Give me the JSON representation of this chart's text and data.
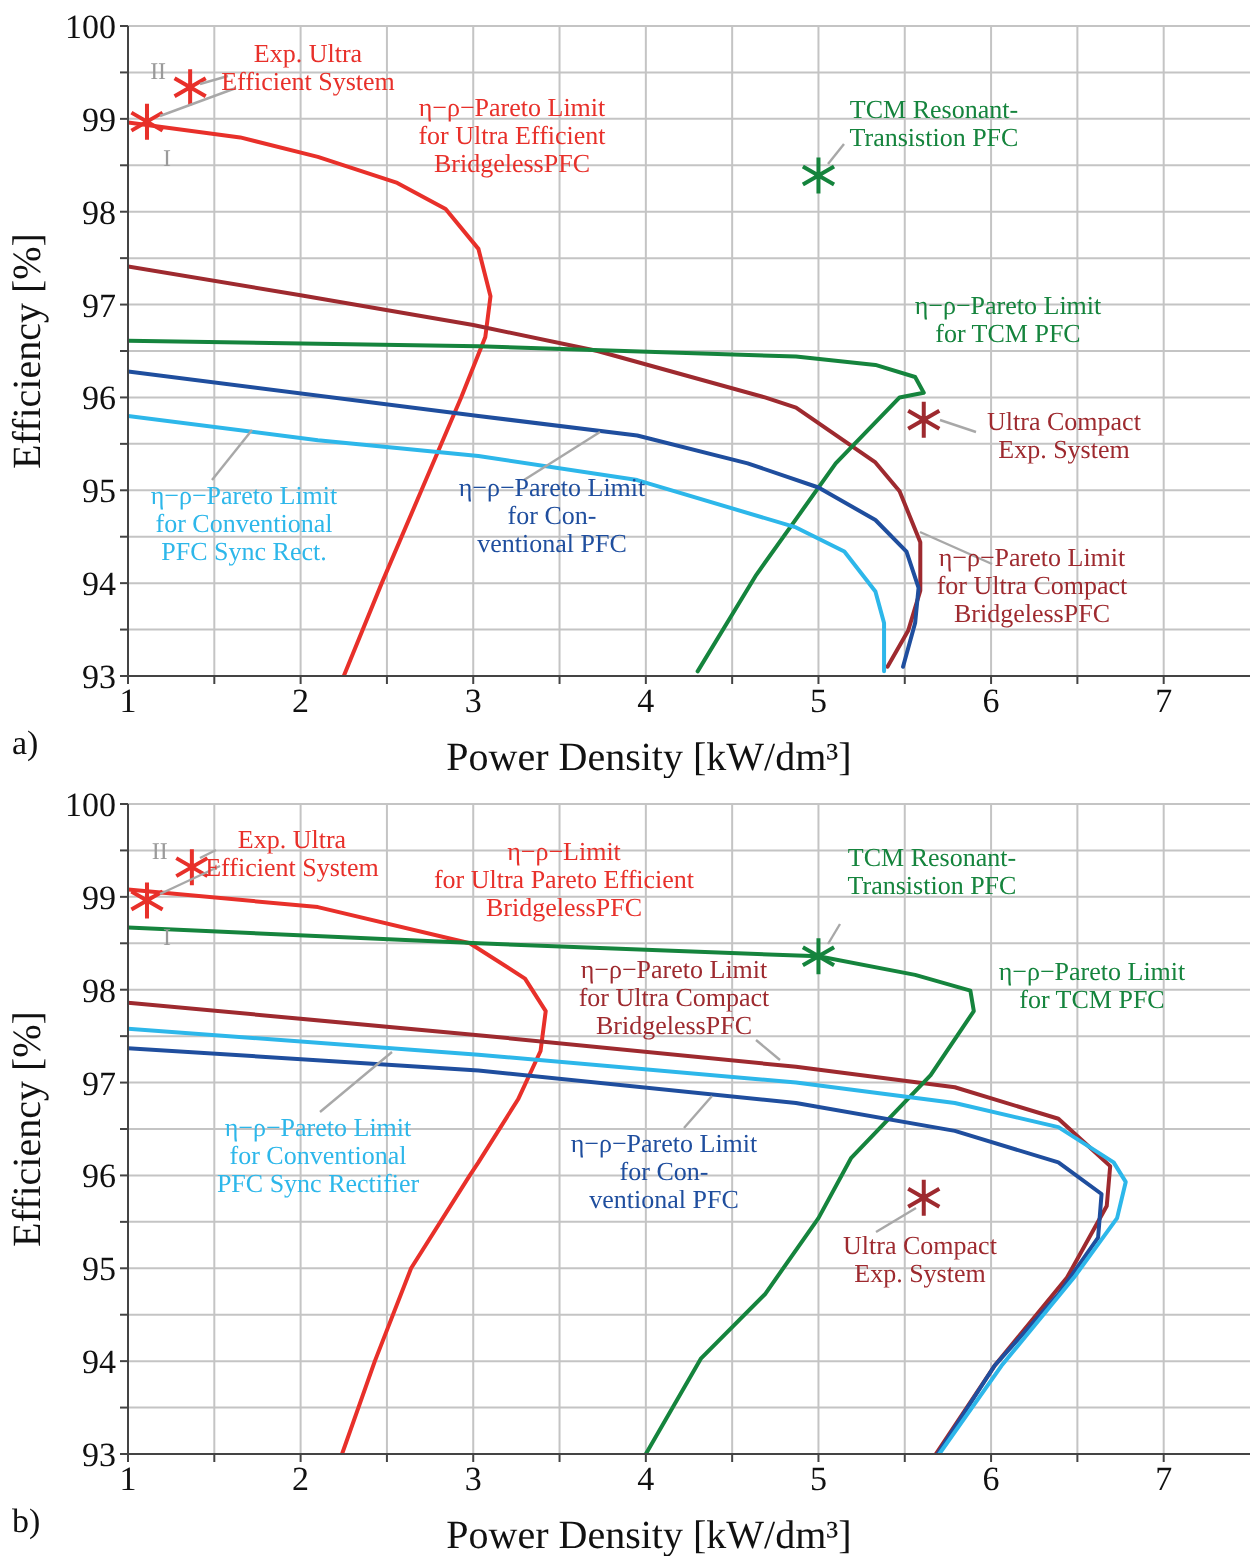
{
  "chart_data": [
    {
      "type": "line",
      "xlabel": "Power Density [kW/dm³]",
      "ylabel": "Efficiency [%]",
      "xlim": [
        1,
        7.5
      ],
      "ylim": [
        93,
        100
      ],
      "xticks": [
        1,
        {
          "value": 1.5,
          "label": null
        },
        2,
        {
          "value": 2.5,
          "label": null
        },
        3,
        {
          "value": 3.5,
          "label": null
        },
        4,
        {
          "value": 4.5,
          "label": null
        },
        5,
        {
          "value": 5.5,
          "label": null
        },
        6,
        {
          "value": 6.5,
          "label": null
        },
        7
      ],
      "yticks": [
        93,
        {
          "value": 93.5,
          "label": null
        },
        94,
        {
          "value": 94.5,
          "label": null
        },
        95,
        {
          "value": 95.5,
          "label": null
        },
        96,
        {
          "value": 96.5,
          "label": null
        },
        97,
        {
          "value": 97.5,
          "label": null
        },
        98,
        {
          "value": 98.5,
          "label": null
        },
        99,
        {
          "value": 99.5,
          "label": null
        },
        100
      ],
      "grid": true,
      "marker": "none",
      "line_style": "solid",
      "annotations": [
        "a)",
        {
          "text": "I",
          "x": 1.11,
          "y": 98.97
        },
        {
          "text": "II",
          "x": 1.36,
          "y": 99.34
        }
      ],
      "series": [
        {
          "name": "η−ρ−Pareto Limit\nfor Ultra Efficient\nBridgelessPFC",
          "color": "#e8302a",
          "x": [
            1,
            1.65,
            2.1,
            2.56,
            2.84,
            3.03,
            3.1,
            3.07,
            2.93,
            2.7,
            2.47,
            2.25
          ],
          "values": [
            98.96,
            98.8,
            98.59,
            98.31,
            98.03,
            97.6,
            97.09,
            96.65,
            96,
            95,
            94,
            93
          ]
        },
        {
          "name": "η−ρ−Pareto Limit\nfor Ultra Compact\nBridgelessPFC",
          "color": "#9e2a2f",
          "x": [
            1,
            2,
            3,
            3.72,
            4.69,
            4.87,
            5.33,
            5.47,
            5.59,
            5.59,
            5.52,
            5.4
          ],
          "values": [
            97.41,
            97.1,
            96.78,
            96.5,
            96,
            95.89,
            95.3,
            94.99,
            94.44,
            93.92,
            93.49,
            93.1
          ]
        },
        {
          "name": "η−ρ−Pareto Limit\nfor TCM PFC",
          "color": "#15843d",
          "x": [
            1,
            3.03,
            4.87,
            5.33,
            5.56,
            5.61,
            5.47,
            5.1,
            4.87,
            4.64,
            4.3
          ],
          "values": [
            96.61,
            96.55,
            96.44,
            96.35,
            96.22,
            96.05,
            96,
            95.29,
            94.69,
            94.09,
            93.05
          ]
        },
        {
          "name": "η−ρ−Pareto Limit\nfor Con-\nventional PFC",
          "color": "#1f4e9e",
          "x": [
            1,
            3.03,
            3.95,
            4.59,
            5,
            5.33,
            5.51,
            5.58,
            5.56,
            5.49
          ],
          "values": [
            96.28,
            95.8,
            95.59,
            95.29,
            95.03,
            94.68,
            94.34,
            93.95,
            93.57,
            93.1
          ]
        },
        {
          "name": "η−ρ−Pareto Limit\nfor Conventional\nPFC Sync Rect.",
          "color": "#2db7ea",
          "x": [
            1,
            2.1,
            3.03,
            3.95,
            4.87,
            5.15,
            5.33,
            5.38,
            5.38
          ],
          "values": [
            95.8,
            95.54,
            95.37,
            95.11,
            94.6,
            94.34,
            93.91,
            93.57,
            93.05
          ]
        },
        {
          "type": "scatter",
          "marker": "cross",
          "name": "Exp. Ultra\nEfficient System",
          "color": "#e8302a",
          "x": [
            1.11,
            1.36
          ],
          "values": [
            98.97,
            99.34
          ]
        },
        {
          "type": "scatter",
          "marker": "cross",
          "name": "TCM Resonant-\nTransistion PFC",
          "color": "#15843d",
          "x": [
            5
          ],
          "values": [
            98.39
          ]
        },
        {
          "type": "scatter",
          "marker": "cross",
          "name": "Ultra Compact\nExp. System",
          "color": "#9e2a2f",
          "x": [
            5.61
          ],
          "values": [
            95.76
          ]
        }
      ]
    },
    {
      "type": "line",
      "xlabel": "Power Density [kW/dm³]",
      "ylabel": "Efficiency [%]",
      "xlim": [
        1,
        7.5
      ],
      "ylim": [
        93,
        100
      ],
      "xticks": [
        1,
        {
          "value": 1.5,
          "label": null
        },
        2,
        {
          "value": 2.5,
          "label": null
        },
        3,
        {
          "value": 3.5,
          "label": null
        },
        4,
        {
          "value": 4.5,
          "label": null
        },
        5,
        {
          "value": 5.5,
          "label": null
        },
        6,
        {
          "value": 6.5,
          "label": null
        },
        7
      ],
      "yticks": [
        93,
        {
          "value": 93.5,
          "label": null
        },
        94,
        {
          "value": 94.5,
          "label": null
        },
        95,
        {
          "value": 95.5,
          "label": null
        },
        96,
        {
          "value": 96.5,
          "label": null
        },
        97,
        {
          "value": 97.5,
          "label": null
        },
        98,
        {
          "value": 98.5,
          "label": null
        },
        99,
        {
          "value": 99.5,
          "label": null
        },
        100
      ],
      "grid": true,
      "marker": "none",
      "line_style": "solid",
      "annotations": [
        "b)",
        {
          "text": "I",
          "x": 1.11,
          "y": 98.96
        },
        {
          "text": "II",
          "x": 1.37,
          "y": 99.32
        }
      ],
      "series": [
        {
          "name": "η−ρ−Limit\nfor Ultra Pareto Efficient\nBridgelessPFC",
          "color": "#e8302a",
          "x": [
            1,
            2.1,
            2.98,
            3.3,
            3.42,
            3.39,
            3.26,
            3.03,
            2.98,
            2.64,
            2.43,
            2.24
          ],
          "values": [
            99.08,
            98.89,
            98.5,
            98.12,
            97.77,
            97.34,
            96.82,
            96.14,
            96,
            95,
            94,
            93
          ]
        },
        {
          "name": "η−ρ−Pareto Limit\nfor Ultra Compact\nBridgelessPFC",
          "color": "#9e2a2f",
          "x": [
            1,
            3.03,
            4.87,
            5.79,
            6.39,
            6.62,
            6.69,
            6.67,
            6.44,
            6.02,
            5.68
          ],
          "values": [
            97.86,
            97.51,
            97.17,
            96.95,
            96.61,
            96.22,
            96.1,
            95.67,
            94.9,
            93.95,
            93
          ]
        },
        {
          "name": "η−ρ−Pareto Limit\nfor TCM PFC",
          "color": "#15843d",
          "x": [
            1,
            3.03,
            5,
            5.56,
            5.88,
            5.9,
            5.65,
            5.19,
            5,
            4.69,
            4.32,
            4
          ],
          "values": [
            98.67,
            98.5,
            98.36,
            98.16,
            97.99,
            97.77,
            97.08,
            96.19,
            95.54,
            94.72,
            94.03,
            93
          ]
        },
        {
          "name": "η−ρ−Pareto Limit\nfor Con-\nventional PFC",
          "color": "#1f4e9e",
          "x": [
            1,
            3.03,
            4.87,
            5.79,
            6.39,
            6.64,
            6.62,
            6.39,
            6.02,
            5.69
          ],
          "values": [
            97.37,
            97.13,
            96.78,
            96.48,
            96.14,
            95.8,
            95.33,
            94.72,
            93.95,
            93
          ]
        },
        {
          "name": "η−ρ−Pareto Limit\nfor Conventional\nPFC Sync Rectifier",
          "color": "#2db7ea",
          "x": [
            1,
            3.03,
            4.87,
            5.79,
            6.39,
            6.71,
            6.78,
            6.73,
            6.48,
            6.06,
            5.7
          ],
          "values": [
            97.58,
            97.3,
            97,
            96.78,
            96.52,
            96.14,
            95.93,
            95.54,
            94.9,
            93.95,
            93
          ]
        },
        {
          "type": "scatter",
          "marker": "cross",
          "name": "Exp. Ultra\nEfficient System",
          "color": "#e8302a",
          "x": [
            1.11,
            1.37
          ],
          "values": [
            98.96,
            99.32
          ]
        },
        {
          "type": "scatter",
          "marker": "cross",
          "name": "TCM Resonant-\nTransistion PFC",
          "color": "#15843d",
          "x": [
            5
          ],
          "values": [
            98.36
          ]
        },
        {
          "type": "scatter",
          "marker": "cross",
          "name": "Ultra Compact\nExp. System",
          "color": "#9e2a2f",
          "x": [
            5.61
          ],
          "values": [
            95.76
          ]
        }
      ]
    }
  ]
}
